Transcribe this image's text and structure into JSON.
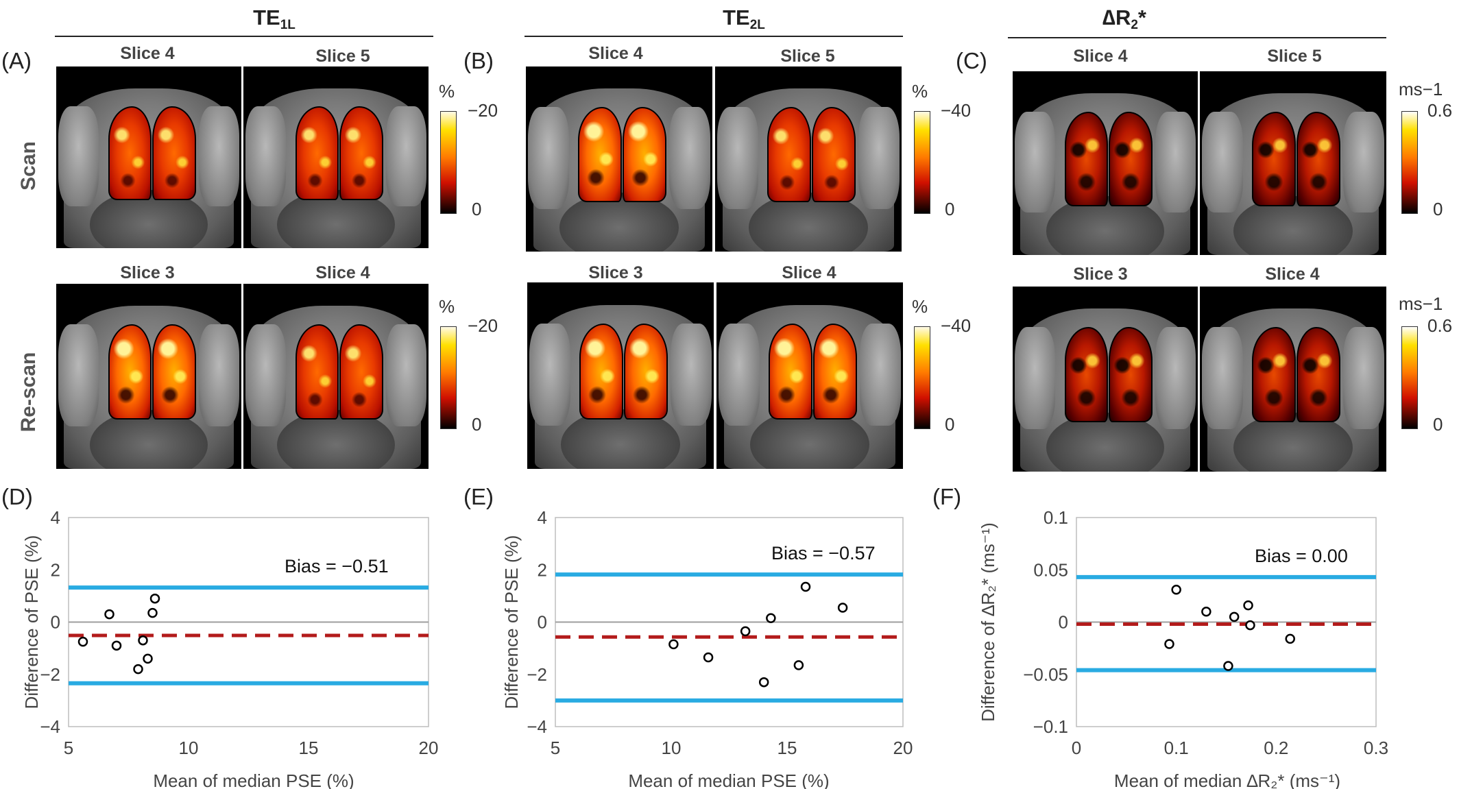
{
  "columns": [
    {
      "title_main": "TE",
      "title_sub": "1L",
      "letter": "(A)"
    },
    {
      "title_main": "TE",
      "title_sub": "2L",
      "letter": "(B)"
    },
    {
      "title_main": "∆R",
      "title_sub": "2",
      "title_suffix": "*",
      "letter": "(C)"
    }
  ],
  "rows": [
    {
      "label": "Scan"
    },
    {
      "label": "Re-scan"
    }
  ],
  "slices": {
    "scan": [
      "Slice 4",
      "Slice 5"
    ],
    "rescan": [
      "Slice 3",
      "Slice 4"
    ]
  },
  "colorbars": [
    {
      "unit": "%",
      "top": "−20",
      "bottom": "0"
    },
    {
      "unit": "%",
      "top": "−40",
      "bottom": "0"
    },
    {
      "unit": "ms−1",
      "top": "0.6",
      "bottom": "0"
    }
  ],
  "colors": {
    "loa": "#29abe2",
    "bias": "#b31b1b",
    "zero": "#9e9e9e",
    "point": "#000000"
  },
  "chart_data": [
    {
      "type": "scatter",
      "letter": "(D)",
      "xlabel": "Mean of median PSE (%)",
      "ylabel": "Difference of PSE (%)",
      "xlim": [
        5,
        20
      ],
      "ylim": [
        -4,
        4
      ],
      "xticks": [
        "5",
        "10",
        "15",
        "20"
      ],
      "yticks": [
        "4",
        "2",
        "0",
        "−2",
        "−4"
      ],
      "bias_label": "Bias = −0.51",
      "bias": -0.51,
      "upper_loa": 1.32,
      "lower_loa": -2.34,
      "points": [
        [
          5.6,
          -0.75
        ],
        [
          6.7,
          0.3
        ],
        [
          7.0,
          -0.9
        ],
        [
          7.9,
          -1.8
        ],
        [
          8.1,
          -0.7
        ],
        [
          8.3,
          -1.4
        ],
        [
          8.5,
          0.35
        ],
        [
          8.6,
          0.9
        ]
      ]
    },
    {
      "type": "scatter",
      "letter": "(E)",
      "xlabel": "Mean of median PSE (%)",
      "ylabel": "Difference of PSE (%)",
      "xlim": [
        5,
        20
      ],
      "ylim": [
        -4,
        4
      ],
      "xticks": [
        "5",
        "10",
        "15",
        "20"
      ],
      "yticks": [
        "4",
        "2",
        "0",
        "−2",
        "−4"
      ],
      "bias_label": "Bias = −0.57",
      "bias": -0.57,
      "upper_loa": 1.82,
      "lower_loa": -3.0,
      "points": [
        [
          10.1,
          -0.85
        ],
        [
          11.6,
          -1.35
        ],
        [
          13.2,
          -0.35
        ],
        [
          14.0,
          -2.3
        ],
        [
          14.3,
          0.15
        ],
        [
          15.5,
          -1.65
        ],
        [
          15.8,
          1.35
        ],
        [
          17.4,
          0.55
        ]
      ]
    },
    {
      "type": "scatter",
      "letter": "(F)",
      "xlabel": "Mean of median ∆R₂* (ms⁻¹)",
      "ylabel": "Difference of ∆R₂* (ms⁻¹)",
      "xlim": [
        0,
        0.3
      ],
      "ylim": [
        -0.1,
        0.1
      ],
      "xticks": [
        "0",
        "0.1",
        "0.2",
        "0.3"
      ],
      "yticks": [
        "0.1",
        "0.05",
        "0",
        "−0.05",
        "−0.1"
      ],
      "bias_label": "Bias = 0.00",
      "bias": -0.002,
      "upper_loa": 0.043,
      "lower_loa": -0.046,
      "points": [
        [
          0.093,
          -0.021
        ],
        [
          0.1,
          0.031
        ],
        [
          0.13,
          0.01
        ],
        [
          0.152,
          -0.042
        ],
        [
          0.158,
          0.005
        ],
        [
          0.172,
          0.016
        ],
        [
          0.174,
          -0.003
        ],
        [
          0.214,
          -0.016
        ]
      ]
    }
  ]
}
